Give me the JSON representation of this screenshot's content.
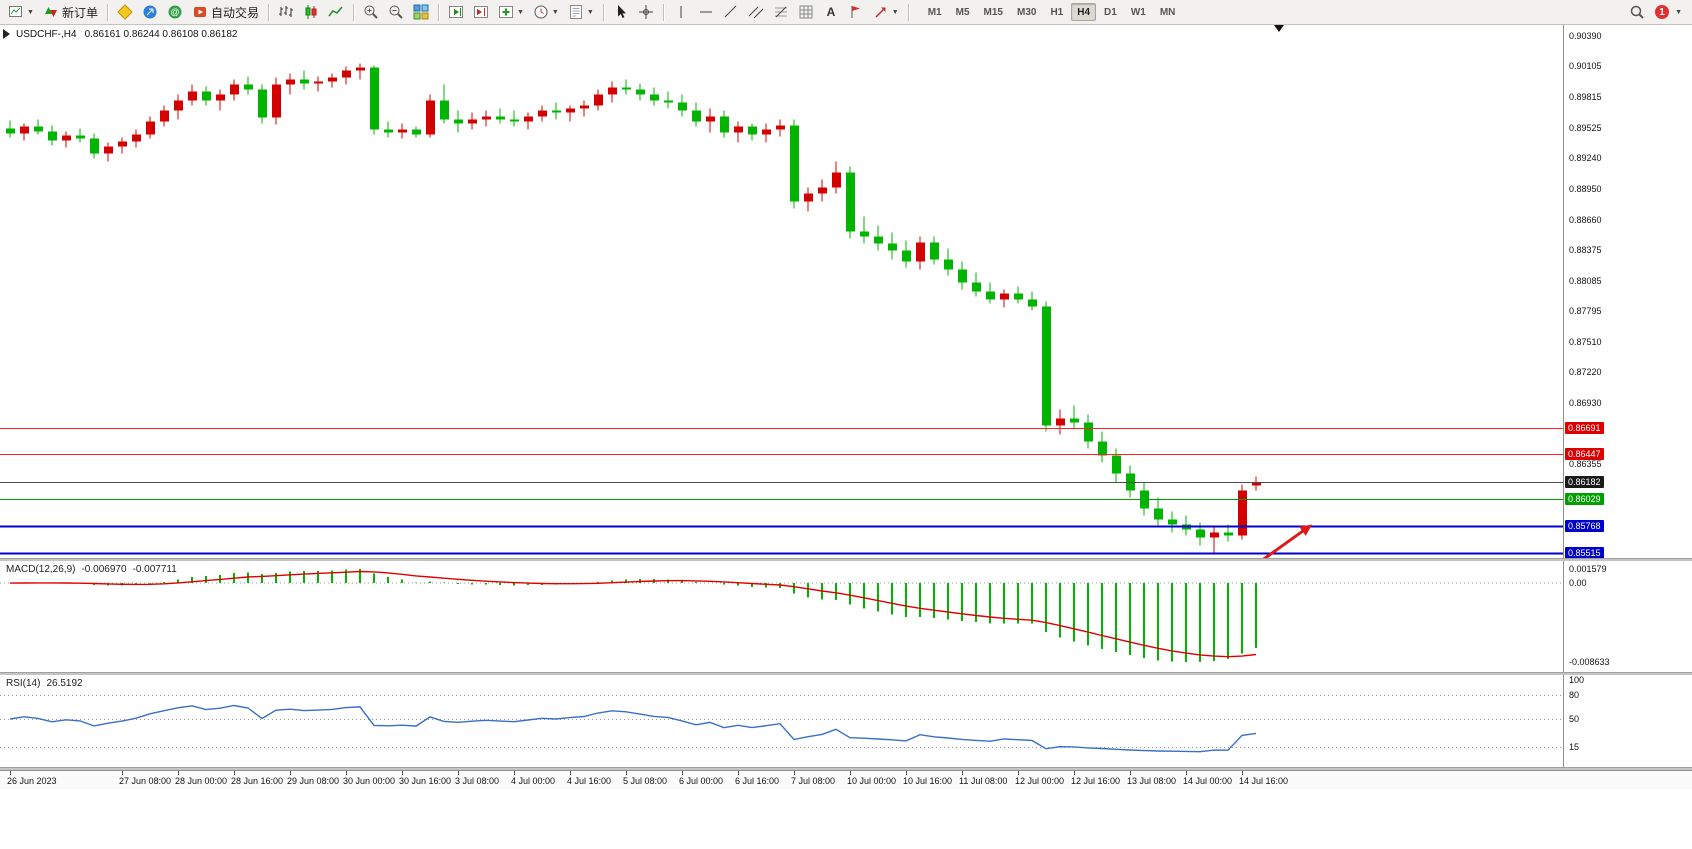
{
  "window": {
    "symbol_period": "USDCHF-,H4",
    "ohlc": "0.86161 0.86244 0.86108 0.86182"
  },
  "toolbar": {
    "new_order_label": "新订单",
    "autotrade_label": "自动交易",
    "timeframes": [
      "M1",
      "M5",
      "M15",
      "M30",
      "H1",
      "H4",
      "D1",
      "W1",
      "MN"
    ],
    "active_timeframe": "H4",
    "notification_count": "1"
  },
  "chart_data": {
    "type": "candlestick",
    "symbol": "USDCHF-",
    "timeframe": "H4",
    "current": {
      "open": 0.86161,
      "high": 0.86244,
      "low": 0.86108,
      "close": 0.86182
    },
    "price_scale": [
      "0.90390",
      "0.90105",
      "0.89815",
      "0.89525",
      "0.89240",
      "0.88950",
      "0.88660",
      "0.88375",
      "0.88085",
      "0.87795",
      "0.87510",
      "0.87220",
      "0.86930",
      "0.86355"
    ],
    "price_lines": [
      {
        "price": 0.86691,
        "label": "0.86691",
        "line": "#ff2020",
        "width": 1,
        "tag_bg": "#dd0000"
      },
      {
        "price": 0.86447,
        "label": "0.86447",
        "line": "#ff2020",
        "width": 1,
        "tag_bg": "#dd0000"
      },
      {
        "price": 0.86182,
        "label": "0.86182",
        "line": "#4d4d4d",
        "width": 1,
        "tag_bg": "#1a1a1a"
      },
      {
        "price": 0.86029,
        "label": "0.86029",
        "line": "#00a000",
        "width": 1,
        "tag_bg": "#00a000"
      },
      {
        "price": 0.85768,
        "label": "0.85768",
        "line": "#0000d0",
        "width": 2,
        "tag_bg": "#0000cc"
      },
      {
        "price": 0.85515,
        "label": "0.85515",
        "line": "#0000d0",
        "width": 2,
        "tag_bg": "#0000cc"
      }
    ],
    "candles": [
      [
        0.8952,
        0.896,
        0.8944,
        0.8948
      ],
      [
        0.8948,
        0.8957,
        0.8941,
        0.8954
      ],
      [
        0.8954,
        0.8961,
        0.8947,
        0.895
      ],
      [
        0.895,
        0.8955,
        0.8936,
        0.8941
      ],
      [
        0.8941,
        0.895,
        0.8934,
        0.8946
      ],
      [
        0.8946,
        0.8952,
        0.8939,
        0.8943
      ],
      [
        0.8943,
        0.8948,
        0.8924,
        0.8929
      ],
      [
        0.8929,
        0.8939,
        0.8921,
        0.8935
      ],
      [
        0.8935,
        0.8944,
        0.8929,
        0.894
      ],
      [
        0.894,
        0.8951,
        0.8934,
        0.8947
      ],
      [
        0.8947,
        0.8964,
        0.8943,
        0.8959
      ],
      [
        0.8959,
        0.8974,
        0.8954,
        0.8969
      ],
      [
        0.8969,
        0.8984,
        0.8961,
        0.8979
      ],
      [
        0.8979,
        0.8994,
        0.8974,
        0.8987
      ],
      [
        0.8987,
        0.8992,
        0.8974,
        0.8979
      ],
      [
        0.8979,
        0.8989,
        0.8969,
        0.8984
      ],
      [
        0.8984,
        0.8999,
        0.8979,
        0.8994
      ],
      [
        0.8994,
        0.9001,
        0.8984,
        0.8989
      ],
      [
        0.8989,
        0.8994,
        0.8957,
        0.8963
      ],
      [
        0.8963,
        0.9,
        0.8956,
        0.8994
      ],
      [
        0.8994,
        0.9004,
        0.8984,
        0.8999
      ],
      [
        0.8999,
        0.9007,
        0.8989,
        0.8995
      ],
      [
        0.8995,
        0.9001,
        0.8987,
        0.8997
      ],
      [
        0.8997,
        0.9004,
        0.8991,
        0.9
      ],
      [
        0.9,
        0.9011,
        0.8994,
        0.9007
      ],
      [
        0.9007,
        0.9014,
        0.8999,
        0.901
      ],
      [
        0.901,
        0.9012,
        0.8947,
        0.8951
      ],
      [
        0.8951,
        0.8959,
        0.8944,
        0.8949
      ],
      [
        0.8949,
        0.8957,
        0.8943,
        0.8951
      ],
      [
        0.8951,
        0.8954,
        0.8944,
        0.8947
      ],
      [
        0.8947,
        0.8984,
        0.8944,
        0.8979
      ],
      [
        0.8979,
        0.8994,
        0.8957,
        0.8961
      ],
      [
        0.8961,
        0.8969,
        0.8949,
        0.8957
      ],
      [
        0.8957,
        0.8967,
        0.8951,
        0.8961
      ],
      [
        0.8961,
        0.8969,
        0.8954,
        0.8964
      ],
      [
        0.8964,
        0.8971,
        0.8957,
        0.8961
      ],
      [
        0.8961,
        0.8969,
        0.8954,
        0.8959
      ],
      [
        0.8959,
        0.8967,
        0.8951,
        0.8964
      ],
      [
        0.8964,
        0.8974,
        0.8959,
        0.8969
      ],
      [
        0.8969,
        0.8977,
        0.8961,
        0.8967
      ],
      [
        0.8967,
        0.8974,
        0.8959,
        0.8971
      ],
      [
        0.8971,
        0.8979,
        0.8964,
        0.8974
      ],
      [
        0.8974,
        0.8989,
        0.8969,
        0.8984
      ],
      [
        0.8984,
        0.8997,
        0.8977,
        0.8991
      ],
      [
        0.8991,
        0.8999,
        0.8984,
        0.8989
      ],
      [
        0.8989,
        0.8995,
        0.8979,
        0.8984
      ],
      [
        0.8984,
        0.8991,
        0.8974,
        0.8979
      ],
      [
        0.8979,
        0.8987,
        0.8971,
        0.8977
      ],
      [
        0.8977,
        0.8984,
        0.8964,
        0.8969
      ],
      [
        0.8969,
        0.8977,
        0.8954,
        0.8959
      ],
      [
        0.8959,
        0.8971,
        0.8949,
        0.8964
      ],
      [
        0.8964,
        0.8969,
        0.8944,
        0.8949
      ],
      [
        0.8949,
        0.8959,
        0.8939,
        0.8954
      ],
      [
        0.8954,
        0.8957,
        0.8941,
        0.8947
      ],
      [
        0.8947,
        0.8957,
        0.8939,
        0.8951
      ],
      [
        0.8951,
        0.8961,
        0.8945,
        0.8955
      ],
      [
        0.8955,
        0.8961,
        0.8877,
        0.8884
      ],
      [
        0.8884,
        0.8897,
        0.8874,
        0.8891
      ],
      [
        0.8891,
        0.8904,
        0.8884,
        0.8897
      ],
      [
        0.8897,
        0.8921,
        0.8891,
        0.8911
      ],
      [
        0.8911,
        0.8917,
        0.8849,
        0.8855
      ],
      [
        0.8855,
        0.8869,
        0.8844,
        0.8851
      ],
      [
        0.8851,
        0.8861,
        0.8837,
        0.8844
      ],
      [
        0.8844,
        0.8854,
        0.8829,
        0.8837
      ],
      [
        0.8837,
        0.8847,
        0.8821,
        0.8827
      ],
      [
        0.8827,
        0.8851,
        0.8819,
        0.8845
      ],
      [
        0.8845,
        0.8851,
        0.8824,
        0.8829
      ],
      [
        0.8829,
        0.8839,
        0.8814,
        0.8819
      ],
      [
        0.8819,
        0.8827,
        0.8801,
        0.8807
      ],
      [
        0.8807,
        0.8817,
        0.8794,
        0.8799
      ],
      [
        0.8799,
        0.8807,
        0.8787,
        0.8791
      ],
      [
        0.8791,
        0.8801,
        0.8784,
        0.8797
      ],
      [
        0.8797,
        0.8803,
        0.8787,
        0.8791
      ],
      [
        0.8791,
        0.8799,
        0.8781,
        0.8785
      ],
      [
        0.8785,
        0.8789,
        0.8667,
        0.8672
      ],
      [
        0.8672,
        0.8687,
        0.8664,
        0.8679
      ],
      [
        0.8679,
        0.8691,
        0.8669,
        0.8675
      ],
      [
        0.8675,
        0.8683,
        0.8651,
        0.8657
      ],
      [
        0.8657,
        0.8667,
        0.8637,
        0.8644
      ],
      [
        0.8644,
        0.8651,
        0.8619,
        0.8627
      ],
      [
        0.8627,
        0.8635,
        0.8604,
        0.8611
      ],
      [
        0.8611,
        0.8619,
        0.8587,
        0.8594
      ],
      [
        0.8594,
        0.8604,
        0.8577,
        0.8584
      ],
      [
        0.8584,
        0.8591,
        0.8571,
        0.8579
      ],
      [
        0.8579,
        0.8587,
        0.8569,
        0.8574
      ],
      [
        0.8574,
        0.8581,
        0.8559,
        0.8567
      ],
      [
        0.8567,
        0.8577,
        0.8552,
        0.8571
      ],
      [
        0.8571,
        0.8579,
        0.8563,
        0.8569
      ],
      [
        0.8569,
        0.8617,
        0.8565,
        0.8611
      ],
      [
        0.86161,
        0.86244,
        0.86108,
        0.86182
      ]
    ],
    "time_labels": [
      {
        "i": 0,
        "t": "26 Jun 2023"
      },
      {
        "i": 8,
        "t": "27 Jun 08:00"
      },
      {
        "i": 12,
        "t": "28 Jun 00:00"
      },
      {
        "i": 16,
        "t": "28 Jun 16:00"
      },
      {
        "i": 20,
        "t": "29 Jun 08:00"
      },
      {
        "i": 24,
        "t": "30 Jun 00:00"
      },
      {
        "i": 28,
        "t": "30 Jun 16:00"
      },
      {
        "i": 32,
        "t": "3 Jul 08:00"
      },
      {
        "i": 36,
        "t": "4 Jul 00:00"
      },
      {
        "i": 40,
        "t": "4 Jul 16:00"
      },
      {
        "i": 44,
        "t": "5 Jul 08:00"
      },
      {
        "i": 48,
        "t": "6 Jul 00:00"
      },
      {
        "i": 52,
        "t": "6 Jul 16:00"
      },
      {
        "i": 56,
        "t": "7 Jul 08:00"
      },
      {
        "i": 60,
        "t": "10 Jul 00:00"
      },
      {
        "i": 64,
        "t": "10 Jul 16:00"
      },
      {
        "i": 68,
        "t": "11 Jul 08:00"
      },
      {
        "i": 72,
        "t": "12 Jul 00:00"
      },
      {
        "i": 76,
        "t": "12 Jul 16:00"
      },
      {
        "i": 80,
        "t": "13 Jul 08:00"
      },
      {
        "i": 84,
        "t": "14 Jul 00:00"
      },
      {
        "i": 88,
        "t": "14 Jul 16:00"
      }
    ],
    "annotations": [
      {
        "type": "arrow",
        "color": "#e01818",
        "from": {
          "candle": 88.4,
          "price": 0.8535
        },
        "to": {
          "candle": 93.0,
          "price": 0.85785
        }
      }
    ],
    "colors": {
      "up": "#d40000",
      "down": "#00b400",
      "macd_hist": "#00b400",
      "macd_signal": "#e00000",
      "rsi": "#3a6fc8",
      "level": "#9a9a9a"
    },
    "macd": {
      "label": "MACD(12,26,9)",
      "value_main": "-0.006970",
      "value_signal": "-0.007711",
      "fast": 12,
      "slow": 26,
      "signal": 9,
      "axis_labels": [
        "0.001579",
        "0.00",
        "-0.008633"
      ]
    },
    "rsi": {
      "label": "RSI(14)",
      "value": "26.5192",
      "period": 14,
      "levels": [
        80,
        50,
        15
      ],
      "axis_labels": [
        "100",
        "80",
        "50",
        "15"
      ]
    }
  }
}
